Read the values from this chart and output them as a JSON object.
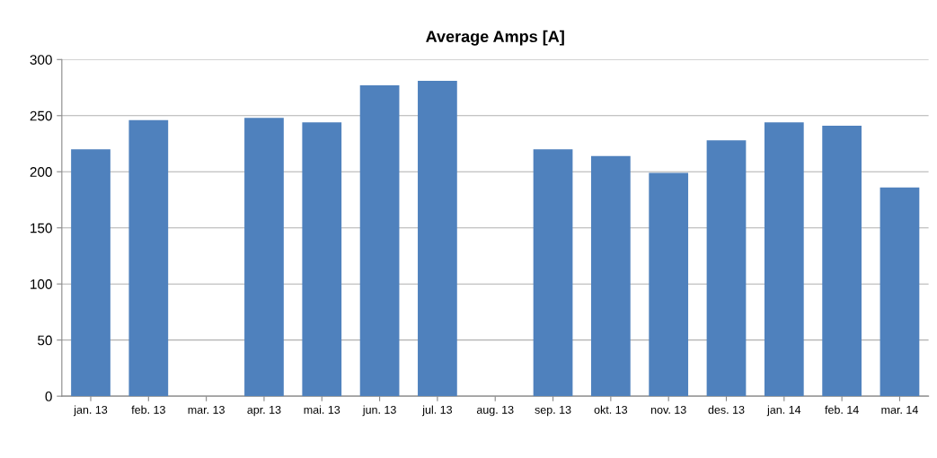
{
  "chart_data": {
    "type": "bar",
    "title": "Average Amps [A]",
    "categories": [
      "jan. 13",
      "feb. 13",
      "mar. 13",
      "apr. 13",
      "mai. 13",
      "jun. 13",
      "jul. 13",
      "aug. 13",
      "sep. 13",
      "okt. 13",
      "nov. 13",
      "des. 13",
      "jan. 14",
      "feb. 14",
      "mar. 14"
    ],
    "values": [
      220,
      246,
      null,
      248,
      244,
      277,
      281,
      null,
      220,
      214,
      199,
      228,
      244,
      241,
      186
    ],
    "color": "#4f81bd",
    "ylim": [
      0,
      300
    ],
    "yticks": [
      0,
      50,
      100,
      150,
      200,
      250,
      300
    ],
    "grid": "y",
    "legend": false
  }
}
